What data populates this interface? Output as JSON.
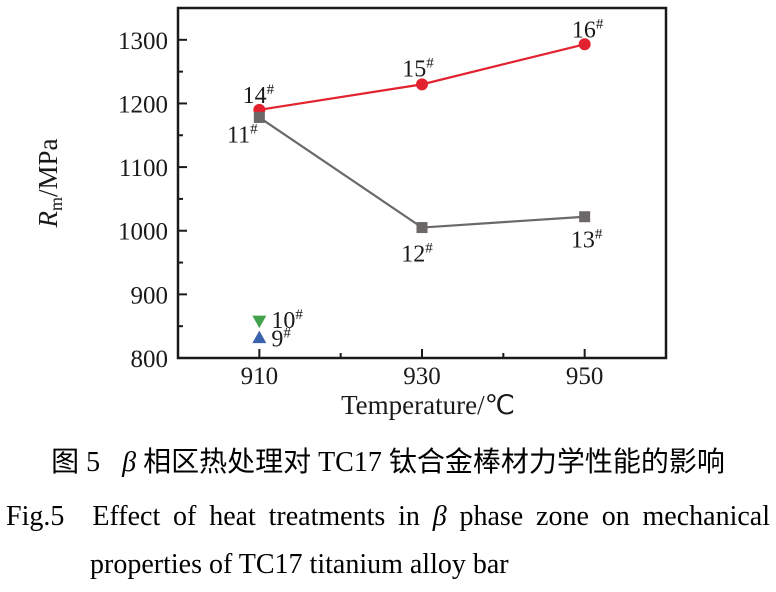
{
  "figure": {
    "captions": {
      "chinese": {
        "fig_label": "图 5",
        "beta": "β",
        "rest": " 相区热处理对 TC17 钛合金棒材力学性能的影响"
      },
      "english": {
        "fig_label": "Fig.5",
        "before_beta": "Effect of heat treatments in ",
        "beta": "β",
        "after_beta": " phase zone on mechanical",
        "line2": "properties of TC17 titanium alloy bar"
      }
    }
  },
  "chart_data": {
    "type": "line",
    "title": "",
    "xlabel": "Temperature/℃",
    "ylabel": {
      "symbol": "R",
      "subscript": "m",
      "unit": "/MPa"
    },
    "x_axis": {
      "min": 900,
      "max": 960,
      "major_ticks": [
        910,
        930,
        950
      ],
      "minor_ticks": [
        920,
        940
      ]
    },
    "y_axis": {
      "min": 800,
      "max": 1350,
      "major_ticks": [
        800,
        900,
        1000,
        1100,
        1200,
        1300
      ],
      "minor_ticks": [
        850,
        950,
        1050,
        1150,
        1250
      ]
    },
    "grid": false,
    "legend": "none",
    "ink_color": "#1a1a1a",
    "series": [
      {
        "name": "red-circle-series",
        "color": "#e2232f",
        "marker": "circle",
        "line": true,
        "points": [
          {
            "x": 910,
            "y": 1190,
            "label": "14",
            "sup": "#",
            "anchor": "middle",
            "ldx": -1,
            "ldy": -7
          },
          {
            "x": 930,
            "y": 1230,
            "label": "15",
            "sup": "#",
            "anchor": "middle",
            "ldx": -4,
            "ldy": -8
          },
          {
            "x": 950,
            "y": 1293,
            "label": "16",
            "sup": "#",
            "anchor": "middle",
            "ldx": 3,
            "ldy": -7
          }
        ]
      },
      {
        "name": "gray-square-series",
        "color": "#6b6867",
        "marker": "square",
        "line": true,
        "points": [
          {
            "x": 910,
            "y": 1178,
            "label": "11",
            "sup": "#",
            "anchor": "middle",
            "ldx": -17,
            "ldy": 25
          },
          {
            "x": 930,
            "y": 1005,
            "label": "12",
            "sup": "#",
            "anchor": "middle",
            "ldx": -5,
            "ldy": 34
          },
          {
            "x": 950,
            "y": 1022,
            "label": "13",
            "sup": "#",
            "anchor": "middle",
            "ldx": 2,
            "ldy": 31
          }
        ]
      },
      {
        "name": "green-triangle-point",
        "color": "#43a24c",
        "marker": "triangle-down",
        "line": false,
        "points": [
          {
            "x": 910,
            "y": 858,
            "label": "10",
            "sup": "#",
            "anchor": "start",
            "ldx": 12,
            "ldy": 7
          }
        ]
      },
      {
        "name": "blue-triangle-point",
        "color": "#3b63ad",
        "marker": "triangle-up",
        "line": false,
        "points": [
          {
            "x": 910,
            "y": 832,
            "label": "9",
            "sup": "#",
            "anchor": "start",
            "ldx": 12,
            "ldy": 9
          }
        ]
      }
    ]
  }
}
